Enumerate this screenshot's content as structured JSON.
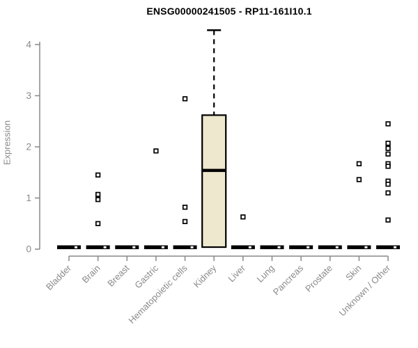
{
  "chart_data": {
    "type": "boxplot",
    "title": "ENSG00000241505 - RP11-161I10.1",
    "ylabel": "Expression",
    "xlabel": "",
    "ylim": [
      0,
      4.3
    ],
    "yticks": [
      0,
      1,
      2,
      3,
      4
    ],
    "grid": "off",
    "legend": "none",
    "axis_color": "#888888",
    "tick_label_color": "#8a8a8a",
    "box_fill": "#EDE8CE",
    "box_stroke": "#000000",
    "categories": [
      "Bladder",
      "Brain",
      "Breast",
      "Gastric",
      "Hematopoietic cells",
      "Kidney",
      "Liver",
      "Lung",
      "Pancreas",
      "Prostate",
      "Skin",
      "Unknown / Other"
    ],
    "boxes": [
      {
        "category": "Bladder",
        "q1": 0,
        "median": 0,
        "q3": 0,
        "whisker_low": 0,
        "whisker_high": 0,
        "outliers": []
      },
      {
        "category": "Brain",
        "q1": 0,
        "median": 0,
        "q3": 0,
        "whisker_low": 0,
        "whisker_high": 0,
        "outliers": [
          1.45,
          1.07,
          0.97,
          0.5
        ]
      },
      {
        "category": "Breast",
        "q1": 0,
        "median": 0,
        "q3": 0,
        "whisker_low": 0,
        "whisker_high": 0,
        "outliers": []
      },
      {
        "category": "Gastric",
        "q1": 0,
        "median": 0,
        "q3": 0,
        "whisker_low": 0,
        "whisker_high": 0,
        "outliers": [
          1.92
        ]
      },
      {
        "category": "Hematopoietic cells",
        "q1": 0,
        "median": 0,
        "q3": 0,
        "whisker_low": 0,
        "whisker_high": 0,
        "outliers": [
          2.94,
          0.82,
          0.54
        ]
      },
      {
        "category": "Kidney",
        "q1": 0.04,
        "median": 1.54,
        "q3": 2.62,
        "whisker_low": 0.04,
        "whisker_high": 4.28,
        "outliers": []
      },
      {
        "category": "Liver",
        "q1": 0,
        "median": 0,
        "q3": 0,
        "whisker_low": 0,
        "whisker_high": 0,
        "outliers": [
          0.63
        ]
      },
      {
        "category": "Lung",
        "q1": 0,
        "median": 0,
        "q3": 0,
        "whisker_low": 0,
        "whisker_high": 0,
        "outliers": []
      },
      {
        "category": "Pancreas",
        "q1": 0,
        "median": 0,
        "q3": 0,
        "whisker_low": 0,
        "whisker_high": 0,
        "outliers": []
      },
      {
        "category": "Prostate",
        "q1": 0,
        "median": 0,
        "q3": 0,
        "whisker_low": 0,
        "whisker_high": 0,
        "outliers": []
      },
      {
        "category": "Skin",
        "q1": 0,
        "median": 0,
        "q3": 0,
        "whisker_low": 0,
        "whisker_high": 0,
        "outliers": [
          1.67,
          1.36
        ]
      },
      {
        "category": "Unknown / Other",
        "q1": 0,
        "median": 0,
        "q3": 0,
        "whisker_low": 0,
        "whisker_high": 0,
        "outliers": [
          2.45,
          2.07,
          1.97,
          1.86,
          1.67,
          1.62,
          1.33,
          1.27,
          1.1,
          0.57
        ]
      }
    ]
  }
}
